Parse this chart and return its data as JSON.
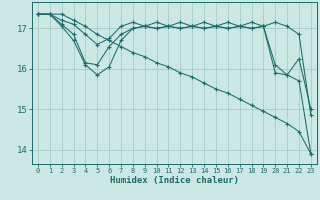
{
  "xlabel": "Humidex (Indice chaleur)",
  "xlim": [
    -0.5,
    23.5
  ],
  "ylim": [
    13.65,
    17.65
  ],
  "yticks": [
    14,
    15,
    16,
    17
  ],
  "xticks": [
    0,
    1,
    2,
    3,
    4,
    5,
    6,
    7,
    8,
    9,
    10,
    11,
    12,
    13,
    14,
    15,
    16,
    17,
    18,
    19,
    20,
    21,
    22,
    23
  ],
  "bg_color": "#cce8e4",
  "grid_color": "#a8ccc8",
  "line_color": "#1a6b6b",
  "series1": [
    17.35,
    17.35,
    17.2,
    17.1,
    16.85,
    16.6,
    16.75,
    17.05,
    17.15,
    17.05,
    17.15,
    17.05,
    17.15,
    17.05,
    17.15,
    17.05,
    17.15,
    17.05,
    17.15,
    17.05,
    17.15,
    17.05,
    16.85,
    14.85
  ],
  "series2": [
    17.35,
    17.35,
    17.05,
    16.7,
    16.1,
    15.85,
    16.05,
    16.7,
    17.0,
    17.05,
    17.0,
    17.05,
    17.0,
    17.05,
    17.0,
    17.05,
    17.0,
    17.05,
    17.0,
    17.05,
    15.9,
    15.85,
    16.25,
    15.0
  ],
  "series3": [
    17.35,
    17.35,
    17.1,
    16.85,
    16.15,
    16.1,
    16.55,
    16.85,
    17.0,
    17.05,
    17.0,
    17.05,
    17.0,
    17.05,
    17.0,
    17.05,
    17.0,
    17.05,
    17.0,
    17.05,
    16.1,
    15.85,
    15.7,
    13.9
  ],
  "series4": [
    17.35,
    17.35,
    17.35,
    17.2,
    17.05,
    16.85,
    16.7,
    16.55,
    16.4,
    16.3,
    16.15,
    16.05,
    15.9,
    15.8,
    15.65,
    15.5,
    15.4,
    15.25,
    15.1,
    14.95,
    14.8,
    14.65,
    14.45,
    13.9
  ]
}
